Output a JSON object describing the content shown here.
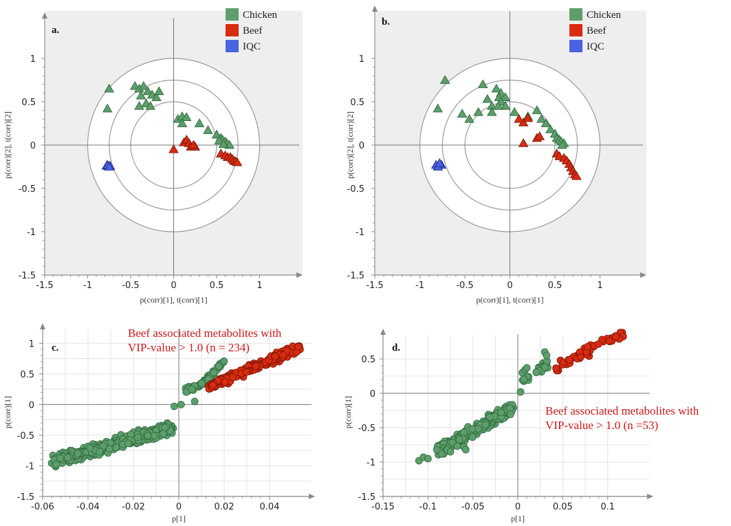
{
  "legend": [
    {
      "name": "Chicken",
      "color": "#5d9e6c"
    },
    {
      "name": "Beef",
      "color": "#d92b10"
    },
    {
      "name": "IQC",
      "color": "#4a63e0"
    }
  ],
  "chart_data": [
    {
      "type": "scatter",
      "panel": "a.",
      "xlabel": "p(corr)[1], t(corr)[1]",
      "ylabel": "p(corr)[2], t(corr)[2]",
      "xlim": [
        -1.5,
        1.5
      ],
      "ylim": [
        -1.5,
        1.5
      ],
      "xticks": [
        "-1.5",
        "-1",
        "-0.5",
        "0",
        "0.5",
        "1"
      ],
      "yticks": [
        "-1.5",
        "-1",
        "-0.5",
        "0",
        "0.5",
        "1"
      ],
      "circles": [
        1.0,
        0.75,
        0.5
      ],
      "legend_position": "top-right",
      "series": [
        {
          "name": "Chicken",
          "marker": "triangle",
          "points": [
            [
              -0.75,
              0.65
            ],
            [
              -0.77,
              0.42
            ],
            [
              -0.45,
              0.68
            ],
            [
              -0.4,
              0.65
            ],
            [
              -0.35,
              0.68
            ],
            [
              -0.3,
              0.62
            ],
            [
              -0.38,
              0.57
            ],
            [
              -0.25,
              0.58
            ],
            [
              -0.2,
              0.55
            ],
            [
              -0.17,
              0.62
            ],
            [
              -0.32,
              0.48
            ],
            [
              -0.4,
              0.45
            ],
            [
              -0.27,
              0.45
            ],
            [
              0.05,
              0.3
            ],
            [
              0.1,
              0.33
            ],
            [
              0.15,
              0.32
            ],
            [
              0.1,
              0.25
            ],
            [
              0.3,
              0.25
            ],
            [
              0.4,
              0.17
            ],
            [
              0.5,
              0.12
            ],
            [
              0.55,
              0.08
            ],
            [
              0.57,
              0.06
            ],
            [
              0.6,
              0.04
            ],
            [
              0.62,
              0.02
            ],
            [
              0.65,
              0.0
            ],
            [
              0.53,
              0.05
            ],
            [
              0.58,
              0.01
            ]
          ]
        },
        {
          "name": "Beef",
          "marker": "triangle",
          "points": [
            [
              0.0,
              -0.05
            ],
            [
              0.12,
              0.03
            ],
            [
              0.15,
              0.06
            ],
            [
              0.18,
              0.02
            ],
            [
              0.2,
              -0.02
            ],
            [
              0.25,
              -0.02
            ],
            [
              0.23,
              0.0
            ],
            [
              0.55,
              -0.1
            ],
            [
              0.6,
              -0.12
            ],
            [
              0.63,
              -0.14
            ],
            [
              0.66,
              -0.14
            ],
            [
              0.68,
              -0.16
            ],
            [
              0.7,
              -0.18
            ],
            [
              0.72,
              -0.19
            ],
            [
              0.74,
              -0.2
            ]
          ]
        },
        {
          "name": "IQC",
          "marker": "triangle",
          "points": [
            [
              -0.78,
              -0.24
            ],
            [
              -0.76,
              -0.24
            ],
            [
              -0.74,
              -0.24
            ],
            [
              -0.77,
              -0.23
            ],
            [
              -0.75,
              -0.25
            ]
          ]
        }
      ]
    },
    {
      "type": "scatter",
      "panel": "b.",
      "xlabel": "p(corr)[1], t(corr)[1]",
      "ylabel": "p(corr)[2], t(corr)[2]",
      "xlim": [
        -1.5,
        1.5
      ],
      "ylim": [
        -1.5,
        1.5
      ],
      "xticks": [
        "-1.5",
        "-1",
        "-0.5",
        "0",
        "0.5",
        "1"
      ],
      "yticks": [
        "-1.5",
        "-1",
        "-0.5",
        "0",
        "0.5",
        "1"
      ],
      "circles": [
        1.0,
        0.75,
        0.5
      ],
      "legend_position": "top-right",
      "series": [
        {
          "name": "Chicken",
          "marker": "triangle",
          "points": [
            [
              -0.8,
              0.42
            ],
            [
              -0.72,
              0.75
            ],
            [
              -0.53,
              0.36
            ],
            [
              -0.45,
              0.3
            ],
            [
              -0.35,
              0.38
            ],
            [
              -0.3,
              0.7
            ],
            [
              -0.25,
              0.53
            ],
            [
              -0.2,
              0.45
            ],
            [
              -0.15,
              0.65
            ],
            [
              -0.1,
              0.6
            ],
            [
              -0.12,
              0.55
            ],
            [
              -0.05,
              0.55
            ],
            [
              -0.1,
              0.5
            ],
            [
              -0.05,
              0.45
            ],
            [
              -0.13,
              0.45
            ],
            [
              -0.2,
              0.38
            ],
            [
              0.05,
              0.38
            ],
            [
              0.2,
              0.33
            ],
            [
              0.3,
              0.4
            ],
            [
              0.35,
              0.3
            ],
            [
              0.4,
              0.25
            ],
            [
              0.45,
              0.18
            ],
            [
              0.5,
              0.13
            ],
            [
              0.52,
              0.08
            ],
            [
              0.55,
              0.06
            ],
            [
              0.57,
              0.04
            ],
            [
              0.6,
              0.02
            ],
            [
              0.58,
              0.0
            ]
          ]
        },
        {
          "name": "Beef",
          "marker": "triangle",
          "points": [
            [
              0.1,
              0.3
            ],
            [
              0.15,
              0.26
            ],
            [
              0.2,
              0.31
            ],
            [
              0.3,
              0.08
            ],
            [
              0.33,
              0.1
            ],
            [
              0.15,
              0.02
            ],
            [
              0.52,
              -0.1
            ],
            [
              0.55,
              -0.13
            ],
            [
              0.6,
              -0.15
            ],
            [
              0.63,
              -0.18
            ],
            [
              0.66,
              -0.22
            ],
            [
              0.68,
              -0.26
            ],
            [
              0.7,
              -0.3
            ],
            [
              0.72,
              -0.34
            ],
            [
              0.74,
              -0.36
            ]
          ]
        },
        {
          "name": "IQC",
          "marker": "triangle",
          "points": [
            [
              -0.82,
              -0.23
            ],
            [
              -0.79,
              -0.23
            ],
            [
              -0.76,
              -0.23
            ],
            [
              -0.8,
              -0.25
            ],
            [
              -0.78,
              -0.21
            ]
          ]
        }
      ]
    },
    {
      "type": "scatter",
      "panel": "c.",
      "xlabel": "p[1]",
      "ylabel": "p(corr)[1]",
      "xlim": [
        -0.06,
        0.06
      ],
      "ylim": [
        -1.5,
        1.25
      ],
      "xticks": [
        "-0.06",
        "-0.04",
        "-0.02",
        "0",
        "0.02",
        "0.04"
      ],
      "yticks": [
        "-1.5",
        "-1",
        "-0.5",
        "0",
        "0.5",
        "1"
      ],
      "annotation": [
        "Beef associated metabolites with",
        "VIP-value  > 1.0 (n =  234)"
      ],
      "series": [
        {
          "name": "Chicken",
          "marker": "circle",
          "clusters": [
            {
              "x0": -0.055,
              "x1": -0.003,
              "y0": -0.93,
              "y1": -0.38,
              "spread": 0.13,
              "n": 480,
              "seed": 11
            },
            {
              "x0": 0.003,
              "x1": 0.016,
              "y0": 0.22,
              "y1": 0.45,
              "spread": 0.07,
              "n": 50,
              "seed": 12
            },
            {
              "x0": 0.012,
              "x1": 0.02,
              "y0": 0.4,
              "y1": 0.7,
              "spread": 0.06,
              "n": 30,
              "seed": 13
            }
          ],
          "points": [
            [
              -0.002,
              -0.03
            ],
            [
              0.001,
              0.0
            ],
            [
              0.007,
              0.05
            ]
          ]
        },
        {
          "name": "Beef",
          "marker": "circle",
          "clusters": [
            {
              "x0": 0.013,
              "x1": 0.053,
              "y0": 0.28,
              "y1": 0.93,
              "spread": 0.1,
              "n": 234,
              "seed": 14
            }
          ],
          "points": []
        }
      ]
    },
    {
      "type": "scatter",
      "panel": "d.",
      "xlabel": "p[1]",
      "ylabel": "p(corr)[1]",
      "xlim": [
        -0.15,
        0.15
      ],
      "ylim": [
        -1.5,
        0.95
      ],
      "xticks": [
        "-0.15",
        "-0.1",
        "-0.05",
        "0",
        "0.05",
        "0.1"
      ],
      "yticks": [
        "-1.5",
        "-1",
        "-0.5",
        "0",
        "0.5"
      ],
      "annotation": [
        "Beef associated metabolites with",
        "VIP-value  > 1.0 (n =53)"
      ],
      "series": [
        {
          "name": "Chicken",
          "marker": "circle",
          "clusters": [
            {
              "x0": -0.09,
              "x1": -0.006,
              "y0": -0.85,
              "y1": -0.22,
              "spread": 0.12,
              "n": 280,
              "seed": 21
            },
            {
              "x0": 0.003,
              "x1": 0.035,
              "y0": 0.15,
              "y1": 0.45,
              "spread": 0.08,
              "n": 25,
              "seed": 22
            }
          ],
          "points": [
            [
              -0.11,
              -0.98
            ],
            [
              -0.105,
              -0.93
            ],
            [
              -0.1,
              -0.95
            ],
            [
              -0.085,
              -0.88
            ],
            [
              -0.075,
              -0.85
            ],
            [
              -0.06,
              -0.78
            ],
            [
              -0.058,
              -0.82
            ],
            [
              0.003,
              0.02
            ],
            [
              0.005,
              0.3
            ],
            [
              0.008,
              0.34
            ],
            [
              0.01,
              0.37
            ],
            [
              0.03,
              0.6
            ],
            [
              0.032,
              0.55
            ]
          ]
        },
        {
          "name": "Beef",
          "marker": "circle",
          "clusters": [
            {
              "x0": 0.035,
              "x1": 0.12,
              "y0": 0.32,
              "y1": 0.9,
              "spread": 0.1,
              "n": 53,
              "seed": 23
            }
          ],
          "points": []
        }
      ]
    }
  ]
}
